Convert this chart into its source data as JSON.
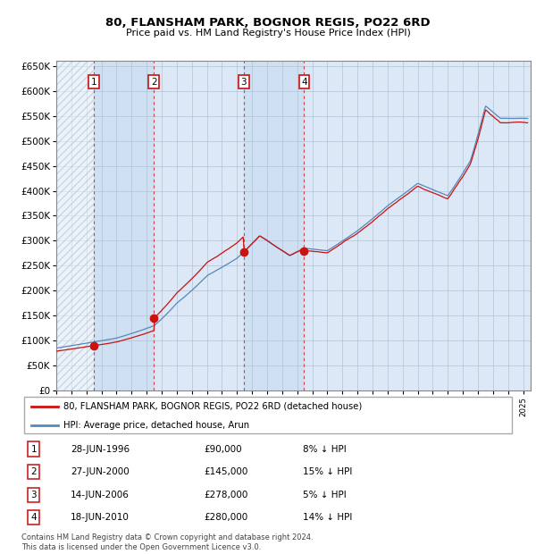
{
  "title": "80, FLANSHAM PARK, BOGNOR REGIS, PO22 6RD",
  "subtitle": "Price paid vs. HM Land Registry's House Price Index (HPI)",
  "background_color": "#ffffff",
  "plot_bg_color": "#dce8f5",
  "hatch_color": "#b0c8e0",
  "grid_color": "#b0c4d8",
  "hpi_line_color": "#5588bb",
  "price_line_color": "#cc1111",
  "ylim": [
    0,
    660000
  ],
  "yticks": [
    0,
    50000,
    100000,
    150000,
    200000,
    250000,
    300000,
    350000,
    400000,
    450000,
    500000,
    550000,
    600000,
    650000
  ],
  "xlim_start": 1994.0,
  "xlim_end": 2025.5,
  "sales": [
    {
      "num": 1,
      "date": "28-JUN-1996",
      "price": 90000,
      "pct": "8%",
      "x_year": 1996.49
    },
    {
      "num": 2,
      "date": "27-JUN-2000",
      "price": 145000,
      "pct": "15%",
      "x_year": 2000.49
    },
    {
      "num": 3,
      "date": "14-JUN-2006",
      "price": 278000,
      "pct": "5%",
      "x_year": 2006.45
    },
    {
      "num": 4,
      "date": "18-JUN-2010",
      "price": 280000,
      "pct": "14%",
      "x_year": 2010.46
    }
  ],
  "legend_label_price": "80, FLANSHAM PARK, BOGNOR REGIS, PO22 6RD (detached house)",
  "legend_label_hpi": "HPI: Average price, detached house, Arun",
  "footer": "Contains HM Land Registry data © Crown copyright and database right 2024.\nThis data is licensed under the Open Government Licence v3.0.",
  "table_rows": [
    [
      "1",
      "28-JUN-1996",
      "£90,000",
      "8% ↓ HPI"
    ],
    [
      "2",
      "27-JUN-2000",
      "£145,000",
      "15% ↓ HPI"
    ],
    [
      "3",
      "14-JUN-2006",
      "£278,000",
      "5% ↓ HPI"
    ],
    [
      "4",
      "18-JUN-2010",
      "£280,000",
      "14% ↓ HPI"
    ]
  ],
  "title_fontsize": 9.5,
  "subtitle_fontsize": 8.0
}
